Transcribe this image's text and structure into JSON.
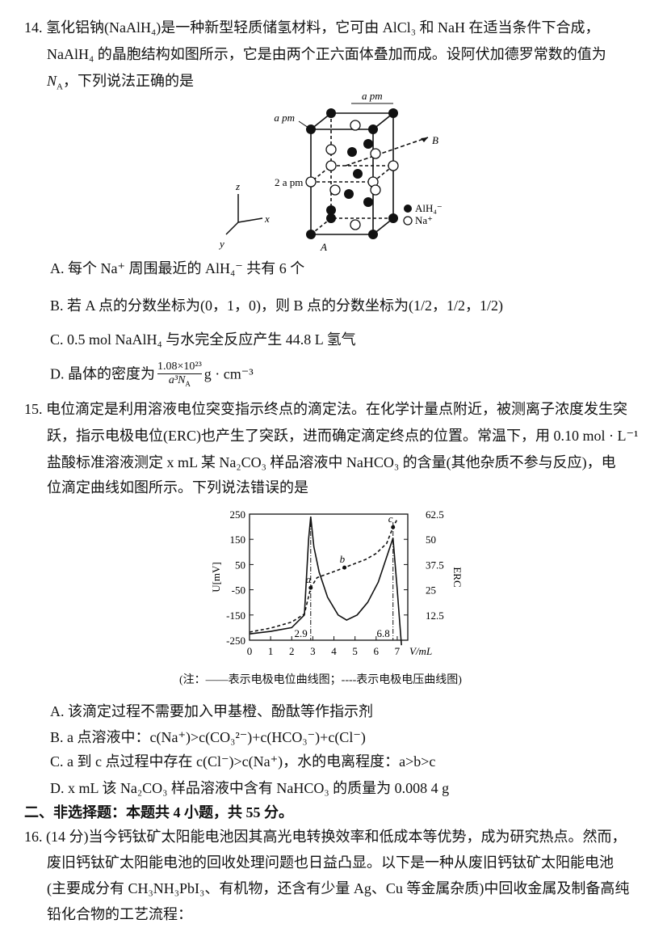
{
  "q14": {
    "stem": [
      "14. 氢化铝钠(NaAlH₄)是一种新型轻质储氢材料，它可由 AlCl₃ 和 NaH 在适当条件下合成，",
      "NaAlH₄ 的晶胞结构如图所示，它是由两个正六面体叠加而成。设阿伏加德罗常数的值为"
    ],
    "stem3": [
      "N",
      "A",
      "，下列说法正确的是"
    ],
    "figure": {
      "a_top": "a pm",
      "a_side": "a pm",
      "two_a": "2 a pm",
      "B": "B",
      "A": "A",
      "z": "z",
      "x": "x",
      "y": "y",
      "legend_alh4": "AlH₄⁻",
      "legend_na": "Na⁺"
    },
    "options": [
      "A. 每个 Na⁺ 周围最近的 AlH₄⁻ 共有 6 个",
      "B. 若 A 点的分数坐标为(0，1，0)，则 B 点的分数坐标为(1/2，1/2，1/2)",
      "C. 0.5 mol NaAlH₄ 与水完全反应产生 44.8 L 氢气"
    ],
    "option_d": {
      "prefix": "D. 晶体的密度为",
      "numerator": "1.08×10²³",
      "denominator": [
        "a³N",
        "A"
      ],
      "suffix": "g · cm⁻³"
    }
  },
  "q15": {
    "stem": [
      "15. 电位滴定是利用溶液电位突变指示终点的滴定法。在化学计量点附近，被测离子浓度发生突",
      "跃，指示电极电位(ERC)也产生了突跃，进而确定滴定终点的位置。常温下，用 0.10 mol · L⁻¹",
      "盐酸标准溶液测定 x mL 某 Na₂CO₃ 样品溶液中 NaHCO₃ 的含量(其他杂质不参与反应)，电",
      "位滴定曲线如图所示。下列说法错误的是"
    ],
    "chart": {
      "type": "line",
      "x_label": "V/mL",
      "y_label": "U[mV]",
      "y2_label": "ERC",
      "xlim": [
        0,
        7.5
      ],
      "ylim": [
        -250,
        250
      ],
      "y2lim": [
        0,
        62.5
      ],
      "xticks": [
        0,
        1,
        2,
        3,
        4,
        5,
        6,
        7
      ],
      "yticks": [
        250,
        150,
        50,
        -50,
        -150,
        -250
      ],
      "y2ticks": [
        62.5,
        50,
        37.5,
        25,
        12.5
      ],
      "vlines": [
        2.9,
        6.8
      ],
      "series": [
        {
          "color": "#111",
          "x": [
            0,
            1,
            2,
            2.6,
            2.8,
            2.9,
            3.05,
            3.3,
            3.7,
            4.2,
            4.6,
            5.1,
            5.6,
            6.1,
            6.5,
            6.8,
            7,
            7.2
          ],
          "values": [
            -225,
            -215,
            -200,
            -150,
            150,
            240,
            120,
            20,
            -80,
            -150,
            -170,
            -150,
            -100,
            -20,
            80,
            155,
            -50,
            -270
          ]
        },
        {
          "color": "#111",
          "axis": "y2",
          "dashed": true,
          "x": [
            0,
            1,
            2,
            2.6,
            2.9,
            3.2,
            4,
            4.5,
            5,
            5.5,
            6,
            6.5,
            6.8,
            7
          ],
          "values": [
            4,
            6,
            9,
            13,
            26,
            31,
            34,
            36,
            38,
            40,
            43,
            48,
            56,
            60
          ]
        }
      ],
      "points": [
        {
          "label": "a",
          "x": 2.9,
          "value": 26
        },
        {
          "label": "b",
          "x": 4.5,
          "value": 36
        },
        {
          "label": "c",
          "x": 6.8,
          "value": 56
        }
      ],
      "caption": "(注：——表示电极电位曲线图；----表示电极电压曲线图)"
    },
    "options": [
      "A. 该滴定过程不需要加入甲基橙、酚酞等作指示剂",
      "B. a 点溶液中：c(Na⁺)>c(CO₃²⁻)+c(HCO₃⁻)+c(Cl⁻)",
      "C. a 到 c 点过程中存在 c(Cl⁻)>c(Na⁺)，水的电离程度：a>b>c",
      "D. x mL 该 Na₂CO₃ 样品溶液中含有 NaHCO₃ 的质量为 0.008 4 g"
    ]
  },
  "section": "二、非选择题：本题共 4 小题，共 55 分。",
  "q16": {
    "stem": [
      "16. (14 分)当今钙钛矿太阳能电池因其高光电转换效率和低成本等优势，成为研究热点。然而，",
      "废旧钙钛矿太阳能电池的回收处理问题也日益凸显。以下是一种从废旧钙钛矿太阳能电池",
      "(主要成分有 CH₃NH₃PbI₃、有机物，还含有少量 Ag、Cu 等金属杂质)中回收金属及制备高纯",
      "铅化合物的工艺流程："
    ]
  }
}
